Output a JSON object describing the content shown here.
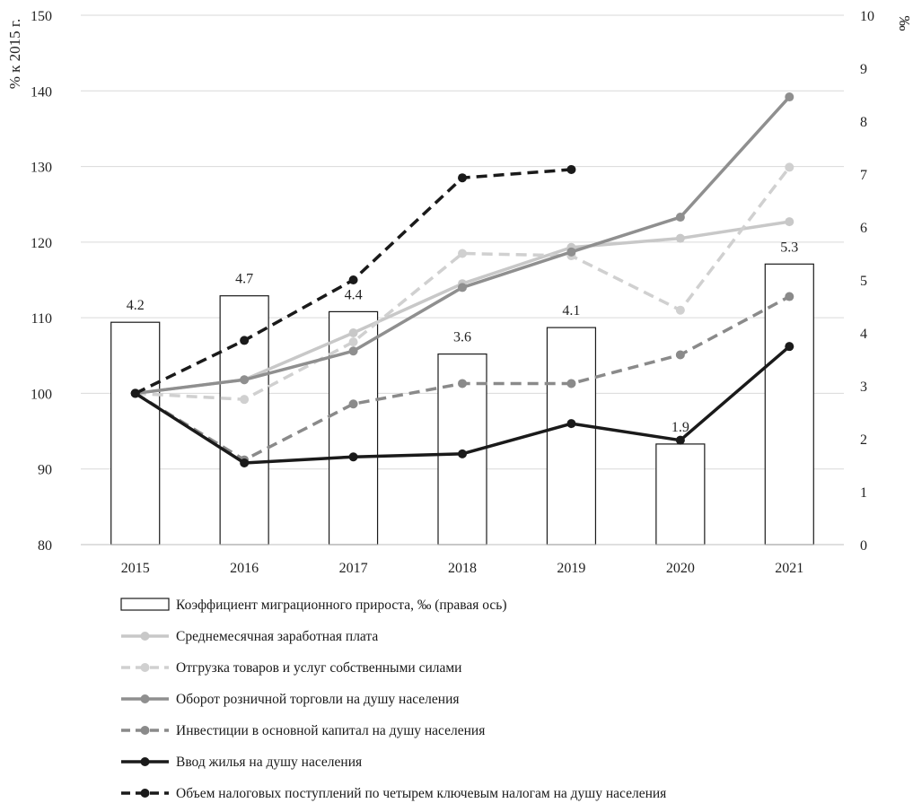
{
  "chart_data": {
    "type": "bar+line",
    "categories": [
      "2015",
      "2016",
      "2017",
      "2018",
      "2019",
      "2020",
      "2021"
    ],
    "left_axis": {
      "label": "% к 2015 г.",
      "ylim": [
        80,
        150
      ],
      "ticks": [
        80,
        90,
        100,
        110,
        120,
        130,
        140,
        150
      ]
    },
    "right_axis": {
      "label": "‰",
      "ylim": [
        0,
        10
      ],
      "ticks": [
        0,
        1,
        2,
        3,
        4,
        5,
        6,
        7,
        8,
        9,
        10
      ]
    },
    "grid": true,
    "bars": {
      "name": "Коэффициент миграционного прироста, ‰ (правая ось)",
      "axis": "right",
      "values": [
        4.2,
        4.7,
        4.4,
        3.6,
        4.1,
        1.9,
        5.3
      ],
      "labels": [
        "4.2",
        "4.7",
        "4.4",
        "3.6",
        "4.1",
        "1.9",
        "5.3"
      ],
      "fill": "#ffffff",
      "stroke": "#1a1a1a"
    },
    "series": [
      {
        "name": "Среднемесячная заработная плата",
        "axis": "left",
        "style": "solid",
        "color": "#c8c8c8",
        "values": [
          100,
          101.8,
          108,
          114.5,
          119.3,
          120.5,
          122.7
        ]
      },
      {
        "name": "Отгрузка товаров и услуг собственными силами",
        "axis": "left",
        "style": "dashed",
        "color": "#d0d0d0",
        "values": [
          100,
          99.2,
          106.8,
          118.5,
          118.2,
          111.0,
          129.9
        ]
      },
      {
        "name": "Оборот розничной торговли на душу населения",
        "axis": "left",
        "style": "solid",
        "color": "#8f8f8f",
        "values": [
          100,
          101.8,
          105.6,
          114.0,
          118.7,
          123.3,
          139.2
        ]
      },
      {
        "name": "Инвестиции в основной капитал на душу населения",
        "axis": "left",
        "style": "dashed",
        "color": "#8a8a8a",
        "values": [
          100,
          91.2,
          98.6,
          101.3,
          101.3,
          105.1,
          112.8
        ]
      },
      {
        "name": "Ввод жилья на душу населения",
        "axis": "left",
        "style": "solid",
        "color": "#1a1a1a",
        "values": [
          100,
          90.8,
          91.6,
          92.0,
          96.0,
          93.8,
          106.2
        ]
      },
      {
        "name": "Объем налоговых поступлений по четырем ключевым налогам на душу населения",
        "axis": "left",
        "style": "dashed",
        "color": "#1a1a1a",
        "values": [
          100,
          107.0,
          115.0,
          128.5,
          129.6,
          null,
          null
        ]
      }
    ],
    "legend_placement": "bottom"
  }
}
